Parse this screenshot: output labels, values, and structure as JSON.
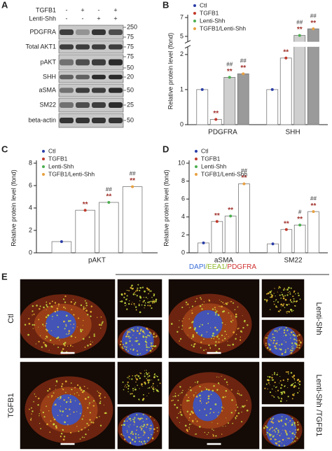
{
  "panels": {
    "a": "A",
    "b": "B",
    "c": "C",
    "d": "D",
    "e": "E"
  },
  "blot": {
    "conditions": [
      {
        "name": "TGFB1",
        "signs": [
          "-",
          "+",
          "-",
          "+"
        ]
      },
      {
        "name": "Lenti-Shh",
        "signs": [
          "-",
          "-",
          "+",
          "+"
        ]
      }
    ],
    "rows": [
      {
        "label": "PDGFRA",
        "markers": [
          "250",
          "75"
        ]
      },
      {
        "label": "Total AKT1",
        "markers": [
          "75"
        ]
      },
      {
        "label": "pAKT",
        "markers": [
          "75",
          "50"
        ]
      },
      {
        "label": "SHH",
        "markers": [
          "20"
        ]
      },
      {
        "label": "aSMA",
        "markers": [
          "50"
        ]
      },
      {
        "label": "SM22",
        "markers": [
          "25"
        ]
      },
      {
        "label": "beta-actin",
        "markers": [
          "50"
        ]
      }
    ]
  },
  "chart_data": [
    {
      "type": "bar",
      "ylabel": "Relative protein level (fond)",
      "categories": [
        "PDGFRA",
        "SHH"
      ],
      "ylim": [
        0,
        7
      ],
      "ybreak": [
        2.2,
        4.5
      ],
      "yticks": [
        0,
        1,
        2,
        5,
        7
      ],
      "legend": "top-left",
      "series": [
        {
          "name": "Ctl",
          "color": "#2b3ea8",
          "bar_color": "#ffffff",
          "values": [
            1.0,
            1.0
          ]
        },
        {
          "name": "TGFB1",
          "color": "#c0392b",
          "bar_color": "#ffffff",
          "values": [
            0.15,
            1.9
          ],
          "stars": [
            "**",
            "**"
          ]
        },
        {
          "name": "Lenti-Shh",
          "color": "#4caf50",
          "bar_color": "#cfcfcf",
          "values": [
            1.35,
            5.1
          ],
          "stars": [
            "**",
            "**"
          ],
          "hashes": [
            "##",
            "##"
          ]
        },
        {
          "name": "TGFB1/Lenti-Shh",
          "color": "#e8a040",
          "bar_color": "#9a9a9a",
          "values": [
            1.45,
            5.8
          ],
          "stars": [
            "**",
            "**"
          ],
          "hashes": [
            "##",
            "##"
          ]
        }
      ]
    },
    {
      "type": "bar",
      "ylabel": "Relative protein level (fond)",
      "categories": [
        "pAKT"
      ],
      "ylim": [
        0,
        8
      ],
      "yticks": [
        0,
        2,
        4,
        6,
        8
      ],
      "legend": "top-left",
      "series": [
        {
          "name": "Ctl",
          "color": "#2b3ea8",
          "bar_color": "#ffffff",
          "values": [
            1.0
          ]
        },
        {
          "name": "TGFB1",
          "color": "#c0392b",
          "bar_color": "#ffffff",
          "values": [
            3.8
          ],
          "stars": [
            "**"
          ]
        },
        {
          "name": "Lenti-Shh",
          "color": "#4caf50",
          "bar_color": "#ffffff",
          "values": [
            4.5
          ],
          "stars": [
            "**"
          ],
          "hashes": [
            "##"
          ]
        },
        {
          "name": "TGFB1/Lenti-Shh",
          "color": "#e8a040",
          "bar_color": "#ffffff",
          "values": [
            5.9
          ],
          "stars": [
            "**"
          ],
          "hashes": [
            "##"
          ]
        }
      ]
    },
    {
      "type": "bar",
      "ylabel": "Relative protein level (fond)",
      "categories": [
        "aSMA",
        "SM22"
      ],
      "ylim": [
        0,
        10
      ],
      "yticks": [
        0,
        2,
        4,
        6,
        8,
        10
      ],
      "legend": "top-left",
      "series": [
        {
          "name": "Ctl",
          "color": "#2b3ea8",
          "bar_color": "#ffffff",
          "values": [
            1.1,
            1.0
          ]
        },
        {
          "name": "TGFB1",
          "color": "#c0392b",
          "bar_color": "#ffffff",
          "values": [
            3.5,
            2.6
          ],
          "stars": [
            "**",
            "**"
          ]
        },
        {
          "name": "Lenti-Shh",
          "color": "#4caf50",
          "bar_color": "#ffffff",
          "values": [
            4.1,
            3.1
          ],
          "stars": [
            "**",
            "**"
          ],
          "hashes": [
            null,
            "#"
          ]
        },
        {
          "name": "TGFB1/Lenti-Shh",
          "color": "#e8a040",
          "bar_color": "#ffffff",
          "values": [
            7.7,
            4.6
          ],
          "stars": [
            "**",
            "**"
          ],
          "hashes": [
            "##",
            "##"
          ]
        }
      ]
    }
  ],
  "figure_e": {
    "title_parts": [
      {
        "text": "DAPI",
        "color": "#3b6fd8"
      },
      {
        "text": "/EEA1/",
        "color": "#8fb82a"
      },
      {
        "text": "PDGFRA",
        "color": "#d03030"
      }
    ],
    "labels": [
      "Ctl",
      "Lenti-Shh",
      "TGFB1",
      "Lenti-Shh /TGFB1"
    ]
  }
}
